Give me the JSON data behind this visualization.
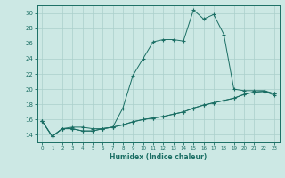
{
  "xlabel": "Humidex (Indice chaleur)",
  "background_color": "#cce8e4",
  "grid_color": "#aacfcb",
  "line_color": "#1a6e64",
  "xlim": [
    -0.5,
    23.5
  ],
  "ylim": [
    13.0,
    31.0
  ],
  "yticks": [
    14,
    16,
    18,
    20,
    22,
    24,
    26,
    28,
    30
  ],
  "xticks": [
    0,
    1,
    2,
    3,
    4,
    5,
    6,
    7,
    8,
    9,
    10,
    11,
    12,
    13,
    14,
    15,
    16,
    17,
    18,
    19,
    20,
    21,
    22,
    23
  ],
  "line1_x": [
    0,
    1,
    2,
    3,
    4,
    5,
    6,
    7,
    8,
    9,
    10,
    11,
    12,
    13,
    14,
    15,
    16,
    17,
    18,
    19,
    20,
    21,
    22,
    23
  ],
  "line1_y": [
    15.8,
    13.8,
    14.8,
    14.8,
    14.5,
    14.5,
    14.8,
    15.0,
    15.3,
    15.7,
    16.0,
    16.2,
    16.4,
    16.7,
    17.0,
    17.5,
    17.9,
    18.2,
    18.5,
    18.8,
    19.3,
    19.6,
    19.7,
    19.4
  ],
  "line2_x": [
    0,
    1,
    2,
    3,
    4,
    5,
    6,
    7,
    8,
    9,
    10,
    11,
    12,
    13,
    14,
    15,
    16,
    17,
    18,
    19,
    20,
    21,
    22,
    23
  ],
  "line2_y": [
    15.8,
    13.8,
    14.8,
    15.0,
    15.0,
    14.8,
    14.8,
    15.0,
    17.5,
    21.8,
    24.0,
    26.2,
    26.5,
    26.5,
    26.3,
    30.4,
    29.2,
    29.8,
    27.2,
    20.0,
    19.8,
    19.8,
    19.8,
    19.4
  ],
  "line3_x": [
    0,
    1,
    2,
    3,
    4,
    5,
    6,
    7,
    8,
    9,
    10,
    11,
    12,
    13,
    14,
    15,
    16,
    17,
    18,
    19,
    20,
    21,
    22,
    23
  ],
  "line3_y": [
    15.8,
    13.8,
    14.8,
    14.8,
    14.5,
    14.5,
    14.8,
    15.0,
    15.3,
    15.7,
    16.0,
    16.2,
    16.4,
    16.7,
    17.0,
    17.5,
    17.9,
    18.2,
    18.5,
    18.8,
    19.3,
    19.6,
    19.7,
    19.2
  ]
}
